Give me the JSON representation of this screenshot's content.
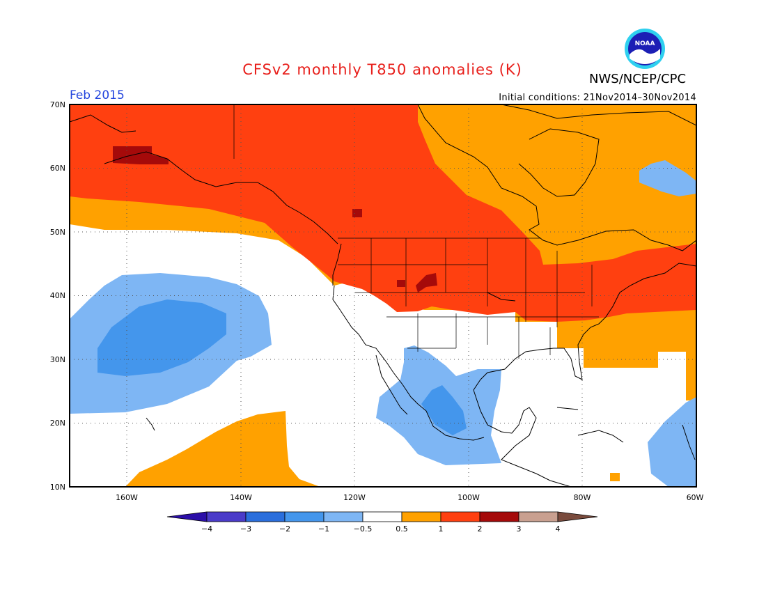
{
  "title": "CFSv2 monthly T850 anomalies (K)",
  "agency": "NWS/NCEP/CPC",
  "logo_text": "NOAA",
  "month_label": "Feb 2015",
  "initial_conditions": "Initial conditions: 21Nov2014–30Nov2014",
  "map": {
    "lon_range": [
      -170,
      -60
    ],
    "lat_range": [
      10,
      70
    ],
    "lon_ticks": [
      "160W",
      "140W",
      "120W",
      "100W",
      "80W",
      "60W"
    ],
    "lat_ticks": [
      "10N",
      "20N",
      "30N",
      "40N",
      "50N",
      "60N",
      "70N"
    ],
    "grid": "dotted"
  },
  "legend": {
    "labels": [
      "−4",
      "−3",
      "−2",
      "−1",
      "−0.5",
      "0.5",
      "1",
      "2",
      "3",
      "4"
    ],
    "colors": [
      "#2b0ea8",
      "#4a3bc9",
      "#2a6edc",
      "#4496ec",
      "#7eb6f4",
      "#ffffff",
      "#ffa100",
      "#ff4010",
      "#a50a0a",
      "#c9a090",
      "#7a4b3d"
    ]
  },
  "colors": {
    "title": "#e8201c",
    "month": "#2244dd",
    "warm_05_1": "#ffa100",
    "warm_1_2": "#ff4010",
    "warm_2_3": "#a50a0a",
    "cool_05_1": "#7eb6f4",
    "cool_1_2": "#4496ec"
  }
}
